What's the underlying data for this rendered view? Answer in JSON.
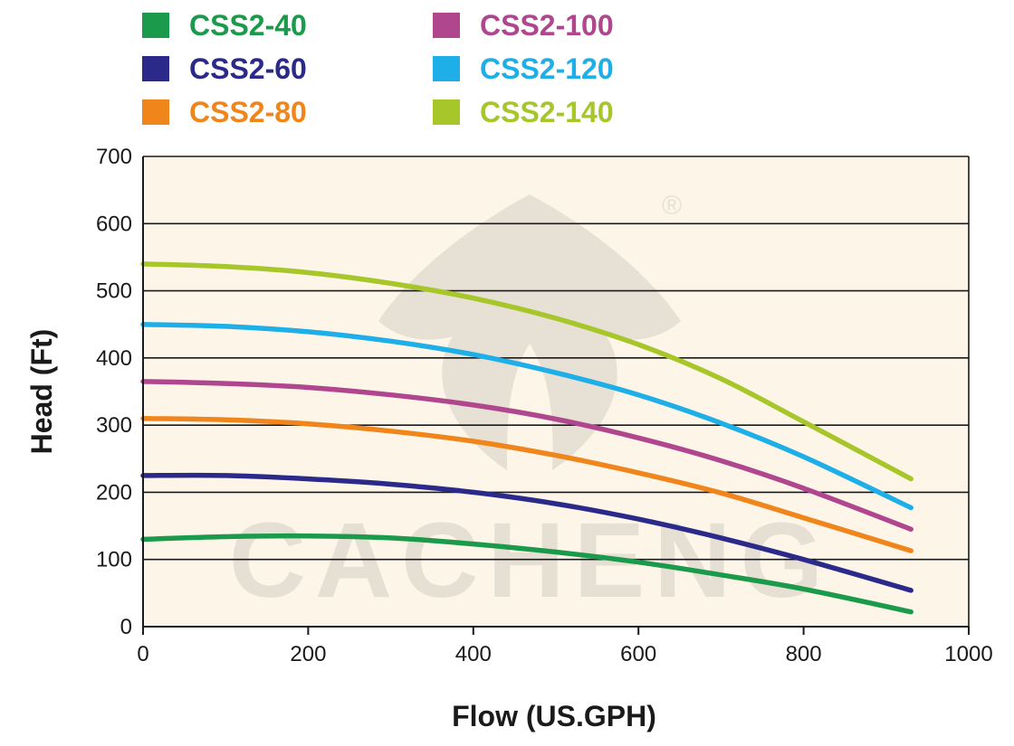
{
  "chart_data": {
    "type": "line",
    "title": "",
    "xlabel": "Flow (US.GPH)",
    "ylabel": "Head (Ft)",
    "xlim": [
      0,
      1000
    ],
    "ylim": [
      0,
      700
    ],
    "x_ticks": [
      0,
      200,
      400,
      600,
      800,
      1000
    ],
    "y_ticks": [
      0,
      100,
      200,
      300,
      400,
      500,
      600,
      700
    ],
    "grid": "horizontal",
    "plot_background": "#fdf5e8",
    "legend_position": "top",
    "watermark": {
      "text": "CACHENG",
      "mark": "®"
    },
    "series": [
      {
        "name": "CSS2-40",
        "color": "#1a9a4a",
        "x": [
          0,
          100,
          200,
          300,
          400,
          500,
          600,
          700,
          800,
          930
        ],
        "y": [
          130,
          134,
          135,
          132,
          123,
          111,
          96,
          77,
          56,
          22
        ]
      },
      {
        "name": "CSS2-60",
        "color": "#2b2a8a",
        "x": [
          0,
          100,
          200,
          300,
          400,
          500,
          600,
          700,
          800,
          930
        ],
        "y": [
          225,
          225,
          220,
          212,
          200,
          183,
          160,
          132,
          100,
          54
        ]
      },
      {
        "name": "CSS2-80",
        "color": "#f0851c",
        "x": [
          0,
          100,
          200,
          300,
          400,
          500,
          600,
          700,
          800,
          930
        ],
        "y": [
          310,
          308,
          302,
          291,
          276,
          255,
          229,
          199,
          162,
          113
        ]
      },
      {
        "name": "CSS2-100",
        "color": "#b0478e",
        "x": [
          0,
          100,
          200,
          300,
          400,
          500,
          600,
          700,
          800,
          930
        ],
        "y": [
          365,
          362,
          356,
          345,
          330,
          309,
          281,
          247,
          206,
          145
        ]
      },
      {
        "name": "CSS2-120",
        "color": "#1eaee8",
        "x": [
          0,
          100,
          200,
          300,
          400,
          500,
          600,
          700,
          800,
          930
        ],
        "y": [
          450,
          447,
          439,
          425,
          405,
          378,
          345,
          303,
          253,
          177
        ]
      },
      {
        "name": "CSS2-140",
        "color": "#a6c62a",
        "x": [
          0,
          100,
          200,
          300,
          400,
          500,
          600,
          700,
          800,
          930
        ],
        "y": [
          540,
          536,
          527,
          511,
          489,
          459,
          420,
          369,
          305,
          220
        ]
      }
    ]
  }
}
